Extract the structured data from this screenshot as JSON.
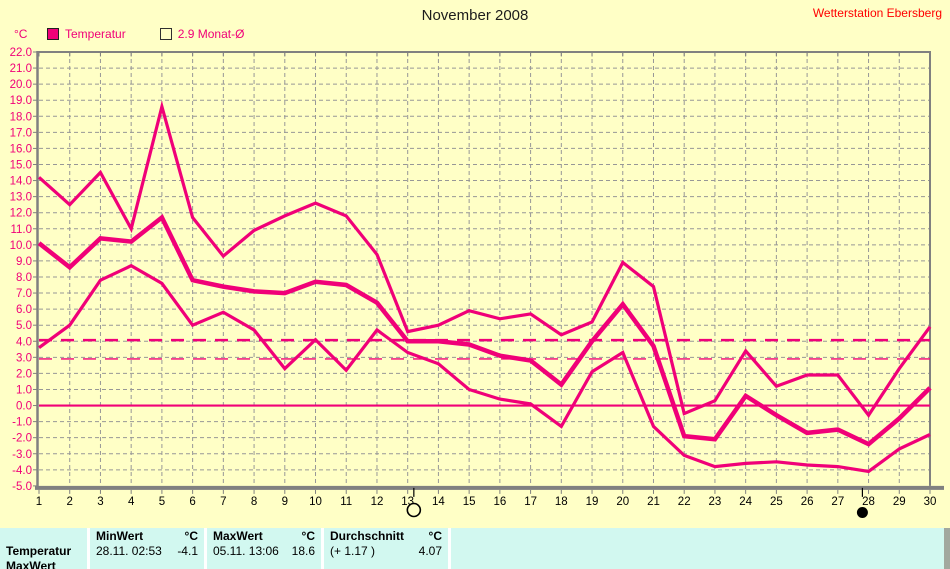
{
  "header": {
    "title": "November 2008",
    "station": "Wetterstation Ebersberg"
  },
  "legend": [
    {
      "label": "Temperatur",
      "swatch": "filled"
    },
    {
      "label": "2.9 Monat-Ø",
      "swatch": "outline"
    }
  ],
  "y_axis": {
    "unit": "°C",
    "max": 22,
    "min": -5,
    "step": 1
  },
  "x_axis": {
    "days": [
      1,
      2,
      3,
      4,
      5,
      6,
      7,
      8,
      9,
      10,
      11,
      12,
      13,
      14,
      15,
      16,
      17,
      18,
      19,
      20,
      21,
      22,
      23,
      24,
      25,
      26,
      27,
      28,
      29,
      30
    ]
  },
  "chart_data": {
    "type": "line",
    "title": "November 2008",
    "x": [
      1,
      2,
      3,
      4,
      5,
      6,
      7,
      8,
      9,
      10,
      11,
      12,
      13,
      14,
      15,
      16,
      17,
      18,
      19,
      20,
      21,
      22,
      23,
      24,
      25,
      26,
      27,
      28,
      29,
      30
    ],
    "ylabel": "°C",
    "ylim": [
      -5,
      22
    ],
    "grid": true,
    "legend_position": "top-left",
    "series": [
      {
        "name": "temperature-daily-max",
        "values": [
          14.2,
          12.5,
          14.5,
          11.0,
          18.6,
          11.7,
          9.3,
          10.9,
          11.8,
          12.6,
          11.8,
          9.4,
          4.6,
          5.0,
          5.9,
          5.4,
          5.7,
          4.4,
          5.2,
          8.9,
          7.4,
          -0.5,
          0.3,
          3.4,
          1.2,
          1.9,
          1.9,
          -0.6,
          2.3,
          4.9
        ]
      },
      {
        "name": "temperature-daily-mean",
        "values": [
          10.1,
          8.6,
          10.4,
          10.2,
          11.7,
          7.8,
          7.4,
          7.1,
          7.0,
          7.7,
          7.5,
          6.4,
          4.0,
          4.0,
          3.8,
          3.1,
          2.8,
          1.3,
          4.0,
          6.3,
          3.7,
          -1.9,
          -2.1,
          0.6,
          -0.6,
          -1.7,
          -1.5,
          -2.4,
          -0.8,
          1.1
        ]
      },
      {
        "name": "temperature-daily-min",
        "values": [
          3.6,
          5.0,
          7.8,
          8.7,
          7.6,
          5.0,
          5.8,
          4.7,
          2.3,
          4.1,
          2.2,
          4.7,
          3.3,
          2.6,
          1.0,
          0.4,
          0.1,
          -1.3,
          2.1,
          3.3,
          -1.3,
          -3.1,
          -3.8,
          -3.6,
          -3.5,
          -3.7,
          -3.8,
          -4.1,
          -2.7,
          -1.8
        ]
      }
    ],
    "reference_lines": [
      {
        "label": "zero-line",
        "value": 0.0,
        "style": "solid"
      },
      {
        "label": "month-average 4.07",
        "value": 4.07,
        "style": "dashed-thick"
      },
      {
        "label": "2.9 Monat-Ø",
        "value": 2.9,
        "style": "dashed-thin"
      }
    ],
    "moon_markers": [
      {
        "day": 13.2,
        "phase": "full-moon"
      },
      {
        "day": 27.8,
        "phase": "new-moon"
      }
    ]
  },
  "info_table": {
    "row_label": "Temperatur",
    "next_row_label_clipped": "MaxWert",
    "columns": [
      {
        "title": "MinWert",
        "unit": "°C",
        "datetime": "28.11.  02:53",
        "value": "-4.1"
      },
      {
        "title": "MaxWert",
        "unit": "°C",
        "datetime": "05.11.  13:06",
        "value": "18.6"
      },
      {
        "title": "Durchschnitt",
        "unit": "°C",
        "datetime": "(+ 1.17 )",
        "value": "4.07"
      }
    ]
  },
  "colors": {
    "series": "#F00078",
    "grid": "#979797",
    "axis": "#808080",
    "background": "#FFFFC6",
    "info_bg": "#D2F8F0",
    "station": "#FF0000",
    "y_label": "#F00078",
    "x_label": "#000000"
  }
}
